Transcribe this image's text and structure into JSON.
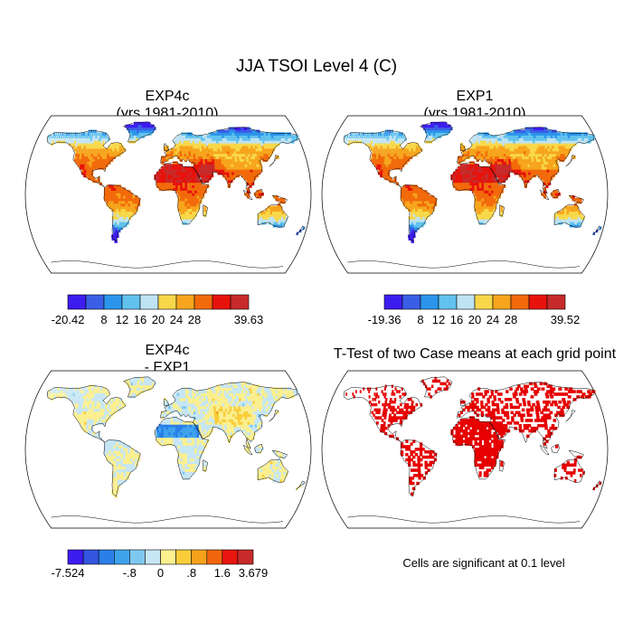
{
  "figure": {
    "title": "JJA TSOI Level 4 (C)",
    "note": "Cells are significant at 0.1 level"
  },
  "colors": {
    "abs_palette": [
      "#3d1cf0",
      "#3b5ee6",
      "#2b95eb",
      "#62c2ee",
      "#bfe3f3",
      "#f8d84a",
      "#f6a51d",
      "#f26a0b",
      "#e8120c",
      "#c72a2a"
    ],
    "diff_palette": [
      "#3d1cf0",
      "#3355e0",
      "#2b7fe8",
      "#3fa3ec",
      "#7ec8f0",
      "#c6e6f4",
      "#fbef8f",
      "#f9cc3a",
      "#f5a11a",
      "#f0660c",
      "#e8160f",
      "#c72a2a"
    ],
    "ocean": "#ffffff",
    "signif": "#e60000"
  },
  "chart_data": [
    {
      "type": "heatmap",
      "name": "exp4c",
      "title_line1": "EXP4c",
      "title_line2": "(yrs 1981-2010)",
      "colorbar": {
        "min": "-20.42",
        "max": "39.63",
        "labels": [
          "8",
          "12",
          "16",
          "20",
          "24",
          "28"
        ]
      }
    },
    {
      "type": "heatmap",
      "name": "exp1",
      "title_line1": "EXP1",
      "title_line2": "(yrs 1981-2010)",
      "colorbar": {
        "min": "-19.36",
        "max": "39.52",
        "labels": [
          "8",
          "12",
          "16",
          "20",
          "24",
          "28"
        ]
      }
    },
    {
      "type": "heatmap",
      "name": "difference",
      "title_line1": "EXP4c",
      "title_line2": "- EXP1",
      "colorbar": {
        "min": "-7.524",
        "max": "3.679",
        "labels": [
          "-.8",
          "0",
          ".8",
          "1.6"
        ]
      }
    },
    {
      "type": "heatmap",
      "name": "ttest",
      "title_line1": "T-Test of two Case means at each grid point",
      "significance_level": 0.1
    }
  ]
}
